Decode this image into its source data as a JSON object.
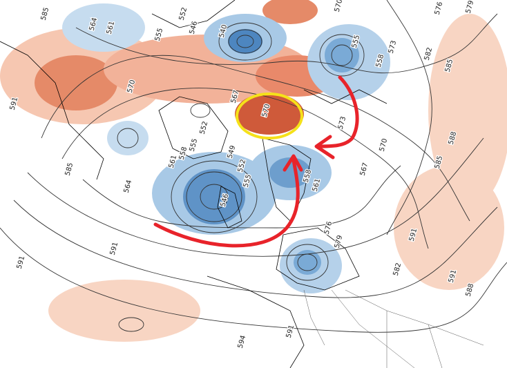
{
  "contour_labels": [
    "585",
    "564",
    "561",
    "552",
    "546",
    "540",
    "555",
    "570",
    "576",
    "579",
    "555",
    "558",
    "573",
    "582",
    "585",
    "591",
    "570",
    "567",
    "570",
    "573",
    "552",
    "555",
    "558",
    "561",
    "549",
    "552",
    "564",
    "546",
    "555",
    "558",
    "561",
    "567",
    "570",
    "585",
    "588",
    "585",
    "591",
    "591",
    "576",
    "579",
    "582",
    "591",
    "591",
    "588",
    "594",
    "591"
  ]
}
